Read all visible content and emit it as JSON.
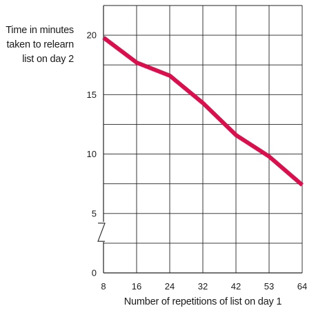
{
  "chart_data": {
    "type": "line",
    "title": "",
    "xlabel": "Number of repetitions of list on day 1",
    "ylabel_lines": [
      "Time in minutes",
      "taken to relearn",
      "list on day 2"
    ],
    "x_categories": [
      "8",
      "16",
      "24",
      "32",
      "42",
      "53",
      "64"
    ],
    "y_ticks": [
      {
        "value": 0,
        "label": "0"
      },
      {
        "value": 5,
        "label": "5"
      },
      {
        "value": 10,
        "label": "10"
      },
      {
        "value": 15,
        "label": "15"
      },
      {
        "value": 20,
        "label": "20"
      }
    ],
    "ylim": [
      0,
      22.5
    ],
    "axis_break": true,
    "grid": true,
    "series": [
      {
        "values": [
          19.8,
          17.7,
          16.6,
          14.3,
          11.6,
          9.8,
          7.4
        ],
        "color": "#d8114e"
      }
    ]
  }
}
